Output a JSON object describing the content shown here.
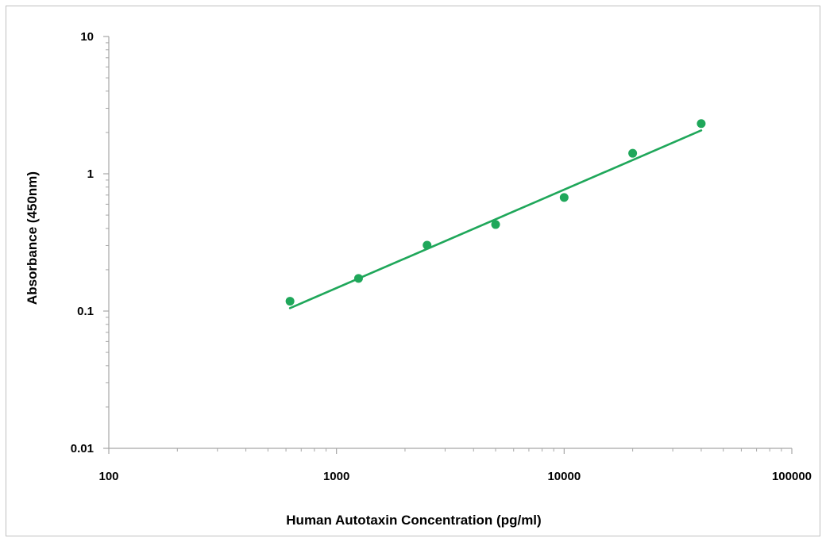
{
  "chart_data": {
    "type": "scatter",
    "xlabel": "Human Autotaxin Concentration (pg/ml)",
    "ylabel": "Absorbance (450nm)",
    "x_scale": "log",
    "y_scale": "log",
    "xlim": [
      100,
      100000
    ],
    "ylim": [
      0.01,
      10
    ],
    "x_ticks": [
      "100",
      "1000",
      "10000",
      "100000"
    ],
    "y_ticks": [
      "0.01",
      "0.1",
      "1",
      "10"
    ],
    "grid": false,
    "legend": "none",
    "series": [
      {
        "x": [
          625,
          1250,
          2500,
          5000,
          10000,
          20000,
          40000
        ],
        "y": [
          0.118,
          0.173,
          0.302,
          0.427,
          0.672,
          1.41,
          2.32
        ]
      }
    ],
    "fit_line": {
      "type": "power",
      "x_range": [
        625,
        40000
      ],
      "y_range": [
        0.105,
        2.07
      ]
    },
    "colors": {
      "series": "#1fa75a",
      "axis": "#a6a6a6"
    }
  }
}
